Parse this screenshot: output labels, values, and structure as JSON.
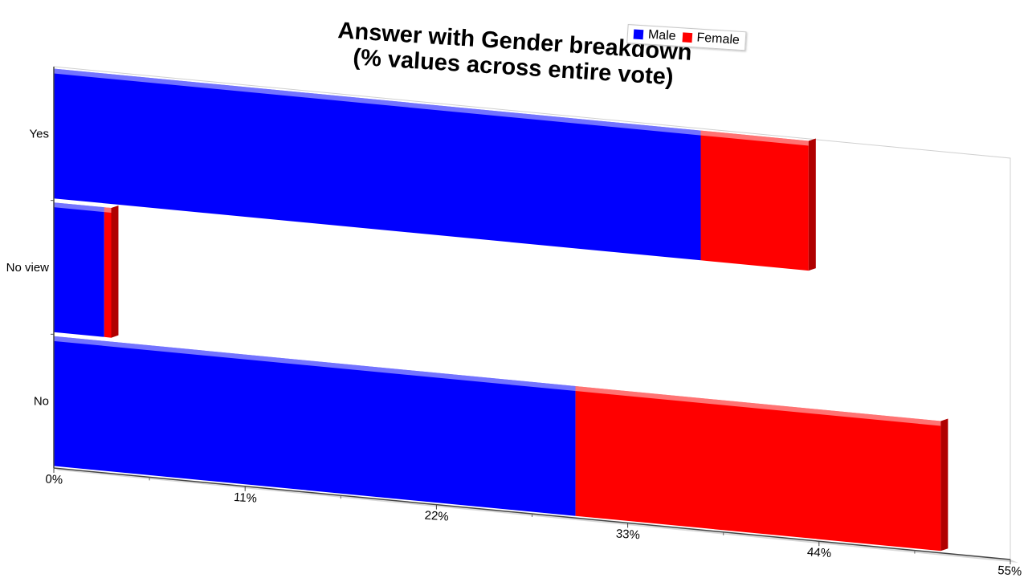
{
  "chart_data": {
    "type": "bar",
    "orientation": "horizontal",
    "stacked": true,
    "title_lines": [
      "Answer with Gender breakdown",
      "(% values across entire vote)"
    ],
    "categories": [
      "Yes",
      "No view",
      "No"
    ],
    "series": [
      {
        "name": "Male",
        "color": "#0000ff",
        "values": [
          37.2,
          2.9,
          30.0
        ]
      },
      {
        "name": "Female",
        "color": "#ff0000",
        "values": [
          6.2,
          0.4,
          21.0
        ]
      }
    ],
    "x_tick_labels": [
      "0%",
      "11%",
      "22%",
      "33%",
      "44%",
      "55%"
    ],
    "xlim": [
      0,
      55
    ],
    "legend_position": "top-right"
  }
}
